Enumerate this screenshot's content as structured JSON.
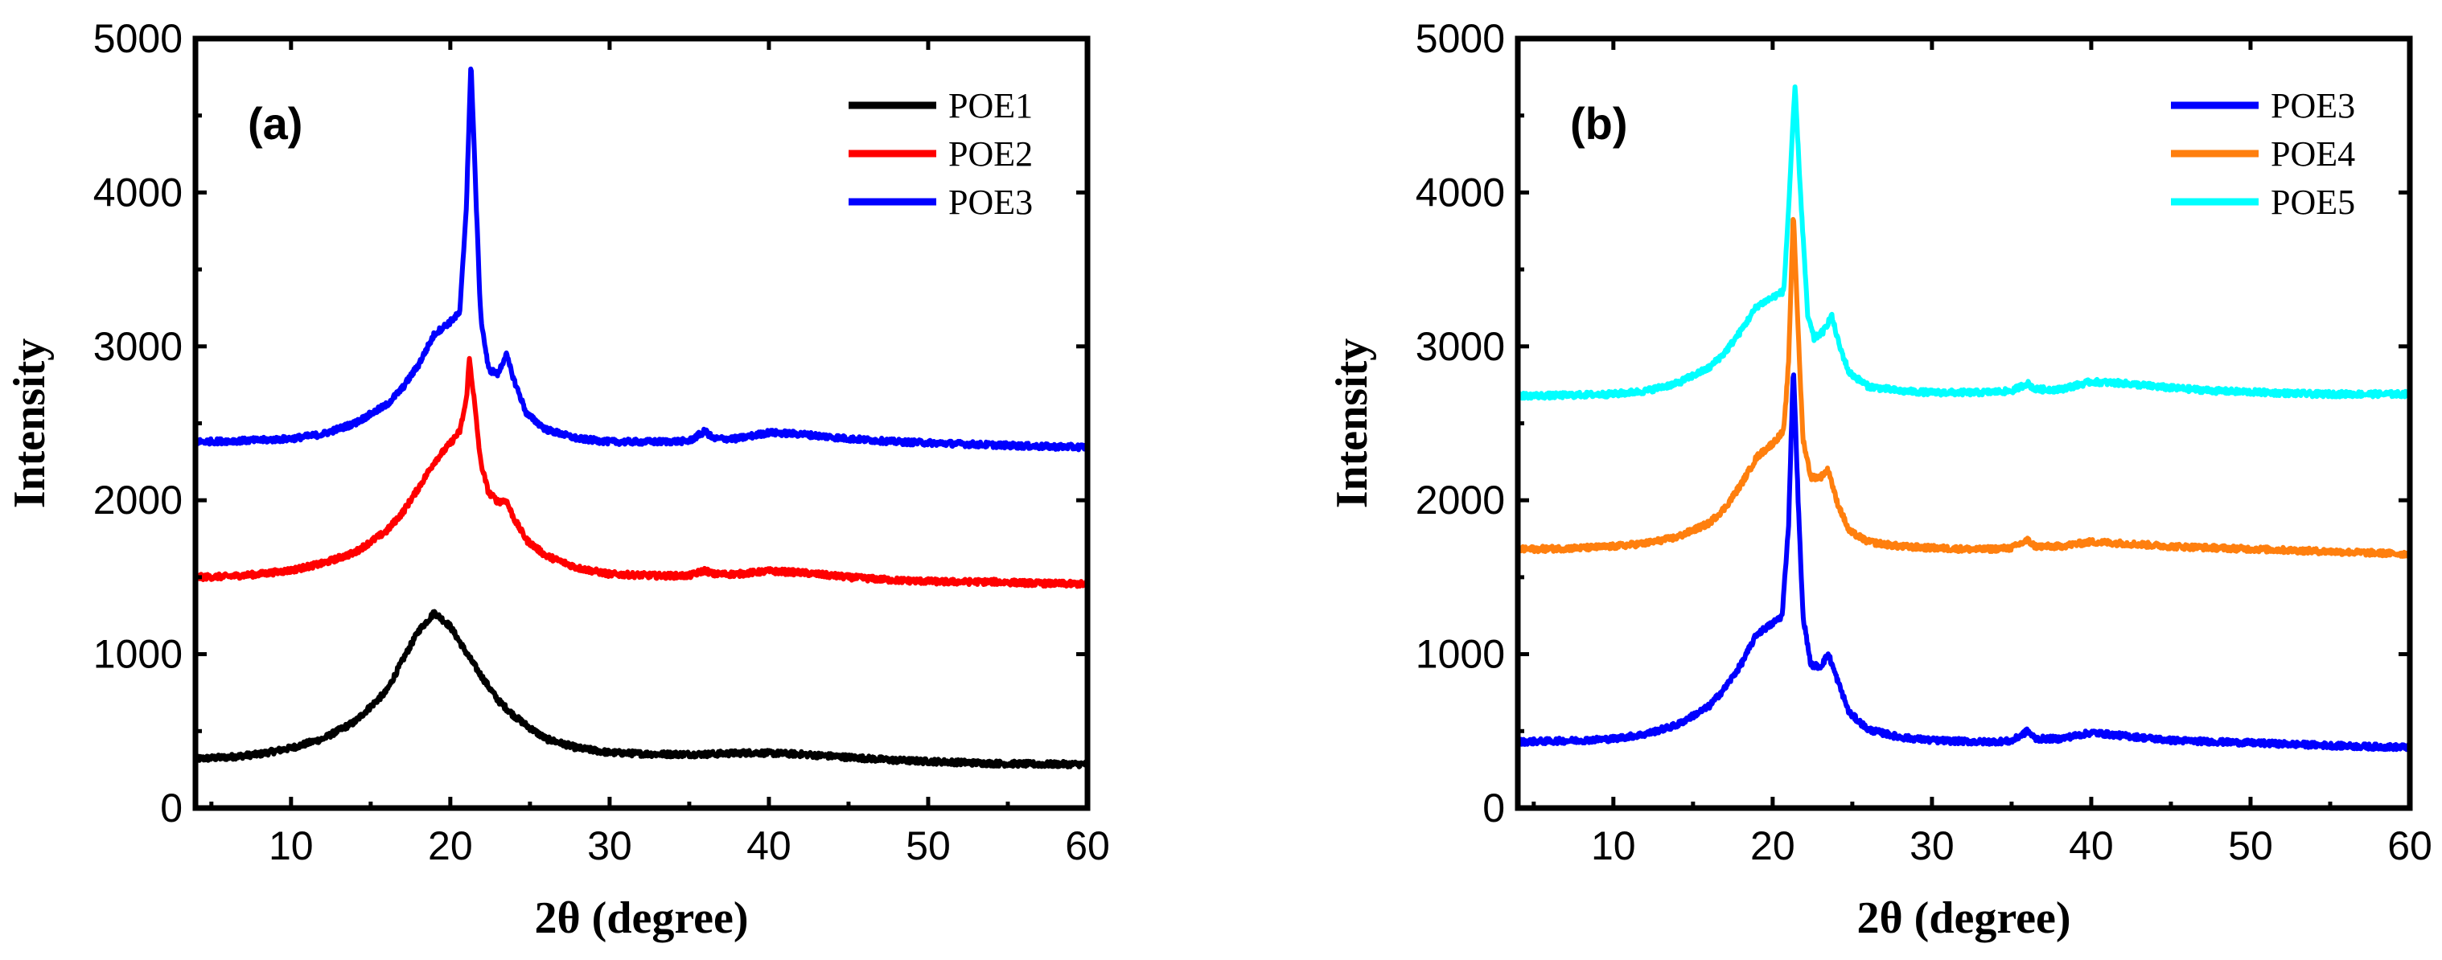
{
  "chart_data": [
    {
      "type": "line",
      "panel_label": "(a)",
      "xlabel": "2θ (degree)",
      "ylabel": "Intensity",
      "xlim": [
        4,
        60
      ],
      "ylim": [
        0,
        5000
      ],
      "xticks": [
        10,
        20,
        30,
        40,
        50,
        60
      ],
      "yticks": [
        0,
        1000,
        2000,
        3000,
        4000,
        5000
      ],
      "legend_position": "top-right",
      "series": [
        {
          "name": "POE1",
          "color": "#000000",
          "baseline": 320,
          "points": [
            [
              4,
              320
            ],
            [
              6,
              330
            ],
            [
              8,
              350
            ],
            [
              10,
              390
            ],
            [
              12,
              450
            ],
            [
              14,
              560
            ],
            [
              16,
              760
            ],
            [
              17,
              960
            ],
            [
              18,
              1150
            ],
            [
              19,
              1270
            ],
            [
              20,
              1180
            ],
            [
              21,
              1010
            ],
            [
              22,
              850
            ],
            [
              23,
              700
            ],
            [
              24,
              600
            ],
            [
              25,
              520
            ],
            [
              26,
              450
            ],
            [
              28,
              390
            ],
            [
              30,
              360
            ],
            [
              33,
              350
            ],
            [
              36,
              350
            ],
            [
              39,
              360
            ],
            [
              42,
              350
            ],
            [
              45,
              330
            ],
            [
              48,
              310
            ],
            [
              51,
              300
            ],
            [
              54,
              290
            ],
            [
              57,
              285
            ],
            [
              60,
              285
            ]
          ]
        },
        {
          "name": "POE2",
          "color": "#ff0000",
          "baseline": 1500,
          "points": [
            [
              4,
              1500
            ],
            [
              6,
              1505
            ],
            [
              8,
              1520
            ],
            [
              10,
              1545
            ],
            [
              12,
              1590
            ],
            [
              14,
              1660
            ],
            [
              16,
              1800
            ],
            [
              17,
              1920
            ],
            [
              18,
              2080
            ],
            [
              19,
              2250
            ],
            [
              20,
              2370
            ],
            [
              20.6,
              2450
            ],
            [
              21.0,
              2650
            ],
            [
              21.2,
              2920
            ],
            [
              21.5,
              2650
            ],
            [
              21.9,
              2250
            ],
            [
              22.4,
              2050
            ],
            [
              23.0,
              1990
            ],
            [
              23.5,
              2000
            ],
            [
              24.0,
              1880
            ],
            [
              24.8,
              1740
            ],
            [
              26,
              1640
            ],
            [
              28,
              1560
            ],
            [
              30,
              1520
            ],
            [
              33,
              1510
            ],
            [
              35,
              1510
            ],
            [
              36,
              1545
            ],
            [
              36.5,
              1520
            ],
            [
              38,
              1520
            ],
            [
              40,
              1540
            ],
            [
              42,
              1530
            ],
            [
              45,
              1500
            ],
            [
              48,
              1480
            ],
            [
              51,
              1470
            ],
            [
              54,
              1470
            ],
            [
              57,
              1460
            ],
            [
              60,
              1455
            ]
          ]
        },
        {
          "name": "POE3",
          "color": "#0000ff",
          "baseline": 2380,
          "points": [
            [
              4,
              2380
            ],
            [
              6,
              2385
            ],
            [
              8,
              2390
            ],
            [
              10,
              2400
            ],
            [
              12,
              2430
            ],
            [
              14,
              2500
            ],
            [
              16,
              2620
            ],
            [
              17,
              2730
            ],
            [
              18,
              2880
            ],
            [
              19,
              3080
            ],
            [
              20,
              3160
            ],
            [
              20.6,
              3220
            ],
            [
              21.0,
              3900
            ],
            [
              21.3,
              4850
            ],
            [
              21.6,
              4000
            ],
            [
              21.9,
              3200
            ],
            [
              22.4,
              2850
            ],
            [
              23.0,
              2820
            ],
            [
              23.5,
              2950
            ],
            [
              24.0,
              2780
            ],
            [
              24.8,
              2560
            ],
            [
              26,
              2460
            ],
            [
              28,
              2400
            ],
            [
              30,
              2380
            ],
            [
              33,
              2380
            ],
            [
              35,
              2385
            ],
            [
              36,
              2450
            ],
            [
              36.5,
              2400
            ],
            [
              38,
              2400
            ],
            [
              40,
              2440
            ],
            [
              42,
              2430
            ],
            [
              45,
              2400
            ],
            [
              48,
              2380
            ],
            [
              51,
              2370
            ],
            [
              54,
              2360
            ],
            [
              57,
              2350
            ],
            [
              60,
              2345
            ]
          ]
        }
      ]
    },
    {
      "type": "line",
      "panel_label": "(b)",
      "xlabel": "2θ (degree)",
      "ylabel": "Intensity",
      "xlim": [
        4,
        60
      ],
      "ylim": [
        0,
        5000
      ],
      "xticks": [
        10,
        20,
        30,
        40,
        50,
        60
      ],
      "yticks": [
        0,
        1000,
        2000,
        3000,
        4000,
        5000
      ],
      "legend_position": "top-right",
      "series": [
        {
          "name": "POE3",
          "color": "#0000ff",
          "baseline": 430,
          "points": [
            [
              4,
              430
            ],
            [
              6,
              435
            ],
            [
              8,
              440
            ],
            [
              10,
              450
            ],
            [
              12,
              480
            ],
            [
              14,
              540
            ],
            [
              16,
              660
            ],
            [
              17,
              780
            ],
            [
              18,
              930
            ],
            [
              19,
              1130
            ],
            [
              20,
              1200
            ],
            [
              20.6,
              1250
            ],
            [
              21.0,
              1850
            ],
            [
              21.3,
              2880
            ],
            [
              21.6,
              2000
            ],
            [
              21.9,
              1250
            ],
            [
              22.4,
              930
            ],
            [
              23.0,
              920
            ],
            [
              23.5,
              1000
            ],
            [
              24.0,
              850
            ],
            [
              24.8,
              620
            ],
            [
              26,
              510
            ],
            [
              28,
              460
            ],
            [
              30,
              440
            ],
            [
              33,
              430
            ],
            [
              35,
              435
            ],
            [
              36,
              500
            ],
            [
              36.5,
              450
            ],
            [
              38,
              450
            ],
            [
              40,
              490
            ],
            [
              42,
              470
            ],
            [
              45,
              440
            ],
            [
              48,
              430
            ],
            [
              51,
              420
            ],
            [
              54,
              410
            ],
            [
              57,
              400
            ],
            [
              60,
              395
            ]
          ]
        },
        {
          "name": "POE4",
          "color": "#ff7f0e",
          "baseline": 1680,
          "points": [
            [
              4,
              1680
            ],
            [
              6,
              1685
            ],
            [
              8,
              1690
            ],
            [
              10,
              1700
            ],
            [
              12,
              1720
            ],
            [
              14,
              1760
            ],
            [
              16,
              1850
            ],
            [
              17,
              1950
            ],
            [
              18,
              2100
            ],
            [
              19,
              2280
            ],
            [
              20,
              2370
            ],
            [
              20.7,
              2450
            ],
            [
              21.0,
              2900
            ],
            [
              21.3,
              3880
            ],
            [
              21.6,
              3100
            ],
            [
              21.9,
              2400
            ],
            [
              22.4,
              2150
            ],
            [
              23.0,
              2150
            ],
            [
              23.5,
              2200
            ],
            [
              24.0,
              2000
            ],
            [
              24.8,
              1800
            ],
            [
              26,
              1730
            ],
            [
              28,
              1700
            ],
            [
              30,
              1690
            ],
            [
              33,
              1680
            ],
            [
              35,
              1690
            ],
            [
              36,
              1740
            ],
            [
              36.5,
              1700
            ],
            [
              38,
              1700
            ],
            [
              40,
              1730
            ],
            [
              42,
              1720
            ],
            [
              45,
              1700
            ],
            [
              48,
              1690
            ],
            [
              51,
              1680
            ],
            [
              54,
              1670
            ],
            [
              57,
              1660
            ],
            [
              60,
              1650
            ]
          ]
        },
        {
          "name": "POE5",
          "color": "#00ffff",
          "baseline": 2680,
          "points": [
            [
              4,
              2680
            ],
            [
              6,
              2680
            ],
            [
              8,
              2685
            ],
            [
              10,
              2690
            ],
            [
              12,
              2710
            ],
            [
              14,
              2760
            ],
            [
              16,
              2860
            ],
            [
              17,
              2960
            ],
            [
              18,
              3100
            ],
            [
              19,
              3260
            ],
            [
              20,
              3320
            ],
            [
              20.7,
              3360
            ],
            [
              21.0,
              3900
            ],
            [
              21.4,
              4690
            ],
            [
              21.8,
              3900
            ],
            [
              22.2,
              3200
            ],
            [
              22.6,
              3050
            ],
            [
              23.2,
              3100
            ],
            [
              23.7,
              3200
            ],
            [
              24.2,
              3000
            ],
            [
              24.8,
              2830
            ],
            [
              26,
              2740
            ],
            [
              28,
              2710
            ],
            [
              30,
              2700
            ],
            [
              33,
              2700
            ],
            [
              35,
              2710
            ],
            [
              36,
              2760
            ],
            [
              36.5,
              2720
            ],
            [
              38,
              2720
            ],
            [
              40,
              2770
            ],
            [
              42,
              2760
            ],
            [
              45,
              2730
            ],
            [
              48,
              2710
            ],
            [
              51,
              2700
            ],
            [
              54,
              2690
            ],
            [
              57,
              2690
            ],
            [
              60,
              2690
            ]
          ]
        }
      ]
    }
  ]
}
